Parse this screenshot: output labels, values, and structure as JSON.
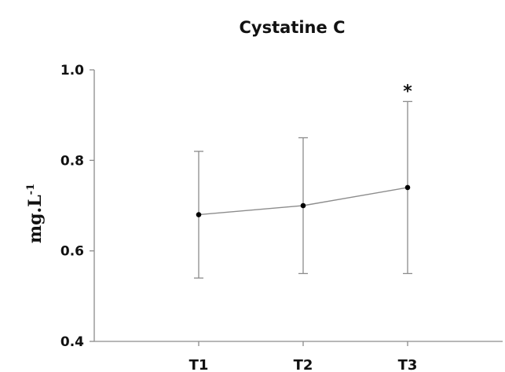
{
  "chart_data": {
    "type": "line",
    "title": "Cystatine C",
    "ylabel": "mg.L",
    "ylabel_superscript": "-1",
    "xlabel": "",
    "categories": [
      "T1",
      "T2",
      "T3"
    ],
    "series": [
      {
        "values": [
          0.68,
          0.7,
          0.74
        ],
        "error_upper": [
          0.82,
          0.85,
          0.93
        ],
        "error_lower": [
          0.54,
          0.55,
          0.55
        ]
      }
    ],
    "ylim": [
      0.4,
      1.0
    ],
    "yticks": [
      "1.0",
      "0.8",
      "0.6",
      "0.4"
    ],
    "ytick_values": [
      1.0,
      0.8,
      0.6,
      0.4
    ],
    "grid": false,
    "annotations": [
      {
        "text": "*",
        "category": "T3"
      }
    ],
    "colors": {
      "line": "#8c8c8c",
      "marker": "#000000",
      "errorbar": "#8c8c8c",
      "axis": "#8c8c8c"
    }
  }
}
